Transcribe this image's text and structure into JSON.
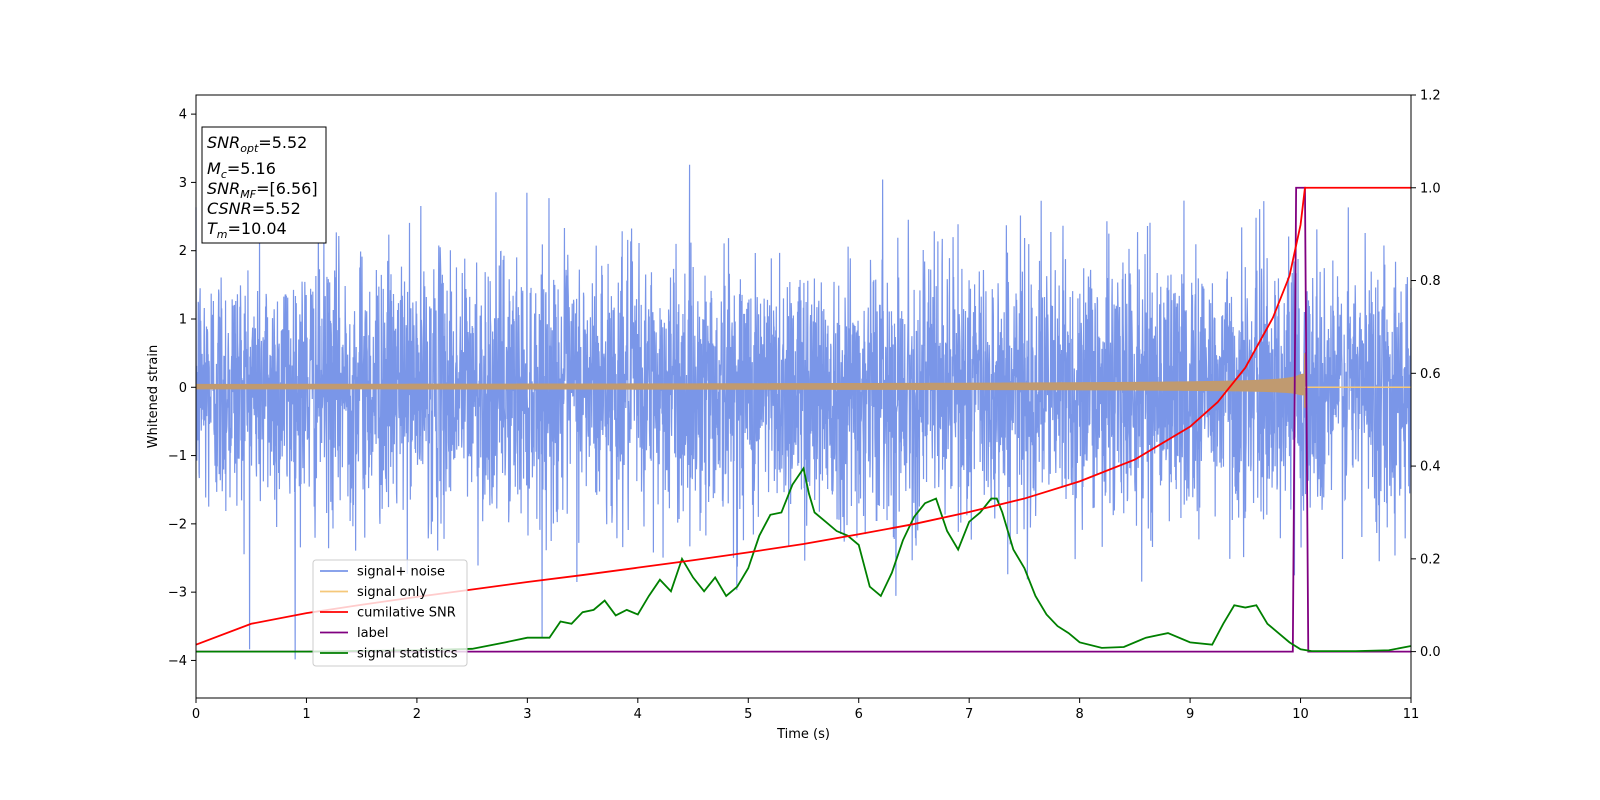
{
  "chart_data": {
    "type": "line",
    "xlabel": "Time (s)",
    "ylabel": "Whitened strain",
    "ylabel_right": "",
    "xlim": [
      0,
      11
    ],
    "ylim": [
      -4.55,
      4.28
    ],
    "ylim_right": [
      -0.1,
      1.2
    ],
    "x_ticks": [
      0,
      1,
      2,
      3,
      4,
      5,
      6,
      7,
      8,
      9,
      10,
      11
    ],
    "y_ticks": [
      -4,
      -3,
      -2,
      -1,
      0,
      1,
      2,
      3,
      4
    ],
    "y_ticks_right": [
      0.0,
      0.2,
      0.4,
      0.6,
      0.8,
      1.0,
      1.2
    ],
    "y_tick_labels": [
      "−4",
      "−3",
      "−2",
      "−1",
      "0",
      "1",
      "2",
      "3",
      "4"
    ],
    "y_tick_labels_right": [
      "0.0",
      "0.2",
      "0.4",
      "0.6",
      "0.8",
      "1.0",
      "1.2"
    ],
    "grid": false,
    "legend_position": "lower-left",
    "info_box": {
      "lines": [
        {
          "main": "SNR",
          "sub": "opt",
          "value": "=5.52"
        },
        {
          "main": "M",
          "sub": "c",
          "value": "=5.16"
        },
        {
          "main": "SNR",
          "sub": "MF",
          "value": "=[6.56]"
        },
        {
          "main": "CSNR",
          "sub": "",
          "value": "=5.52"
        },
        {
          "main": "T",
          "sub": "m",
          "value": "=10.04"
        }
      ]
    },
    "series": [
      {
        "name": "signal+ noise",
        "color": "#7a96e8",
        "axis": "left",
        "style": "noise",
        "amplitude_sigma": 0.95,
        "x_range": [
          0,
          11
        ]
      },
      {
        "name": "signal only",
        "color": "#f5c87a",
        "axis": "left",
        "style": "chirp",
        "merger_time": 10.04,
        "peak_amplitude": 0.5
      },
      {
        "name": "cumilative SNR",
        "color": "#ff0000",
        "axis": "right",
        "x": [
          0,
          0.5,
          1,
          1.5,
          2,
          2.5,
          3,
          3.5,
          4,
          4.5,
          5,
          5.5,
          6,
          6.5,
          7,
          7.5,
          8,
          8.5,
          9,
          9.25,
          9.5,
          9.75,
          9.9,
          10.0,
          10.04,
          11
        ],
        "y": [
          0.015,
          0.06,
          0.083,
          0.101,
          0.118,
          0.134,
          0.15,
          0.165,
          0.181,
          0.197,
          0.214,
          0.232,
          0.253,
          0.275,
          0.301,
          0.33,
          0.367,
          0.414,
          0.485,
          0.538,
          0.612,
          0.72,
          0.81,
          0.92,
          1.0,
          1.0
        ]
      },
      {
        "name": "label",
        "color": "#800080",
        "axis": "right",
        "x": [
          0,
          9.93,
          9.96,
          10.04,
          10.07,
          11
        ],
        "y": [
          0.0,
          0.0,
          1.0,
          1.0,
          0.0,
          0.0
        ]
      },
      {
        "name": "signal statistics",
        "color": "#008000",
        "axis": "right",
        "x": [
          0,
          1,
          2,
          2.5,
          2.8,
          3.0,
          3.2,
          3.3,
          3.4,
          3.5,
          3.6,
          3.7,
          3.8,
          3.9,
          4.0,
          4.1,
          4.2,
          4.3,
          4.4,
          4.5,
          4.6,
          4.7,
          4.8,
          4.9,
          5.0,
          5.1,
          5.2,
          5.3,
          5.4,
          5.5,
          5.55,
          5.6,
          5.7,
          5.8,
          5.9,
          6.0,
          6.1,
          6.2,
          6.3,
          6.4,
          6.5,
          6.6,
          6.7,
          6.8,
          6.9,
          7.0,
          7.1,
          7.2,
          7.25,
          7.3,
          7.4,
          7.5,
          7.6,
          7.7,
          7.8,
          7.9,
          8.0,
          8.2,
          8.4,
          8.6,
          8.8,
          9.0,
          9.2,
          9.3,
          9.4,
          9.5,
          9.6,
          9.7,
          9.8,
          9.9,
          10.0,
          10.1,
          10.5,
          10.8,
          11
        ],
        "y": [
          0.0,
          0.0,
          0.003,
          0.006,
          0.02,
          0.03,
          0.03,
          0.065,
          0.06,
          0.085,
          0.09,
          0.11,
          0.078,
          0.09,
          0.08,
          0.12,
          0.155,
          0.13,
          0.2,
          0.16,
          0.13,
          0.16,
          0.12,
          0.14,
          0.18,
          0.25,
          0.295,
          0.3,
          0.36,
          0.395,
          0.34,
          0.3,
          0.28,
          0.26,
          0.25,
          0.23,
          0.14,
          0.12,
          0.17,
          0.24,
          0.29,
          0.32,
          0.33,
          0.26,
          0.22,
          0.28,
          0.3,
          0.33,
          0.33,
          0.3,
          0.22,
          0.18,
          0.12,
          0.08,
          0.055,
          0.04,
          0.02,
          0.008,
          0.01,
          0.03,
          0.04,
          0.02,
          0.015,
          0.06,
          0.1,
          0.095,
          0.1,
          0.06,
          0.04,
          0.02,
          0.005,
          0.001,
          0.001,
          0.003,
          0.012
        ]
      }
    ]
  }
}
